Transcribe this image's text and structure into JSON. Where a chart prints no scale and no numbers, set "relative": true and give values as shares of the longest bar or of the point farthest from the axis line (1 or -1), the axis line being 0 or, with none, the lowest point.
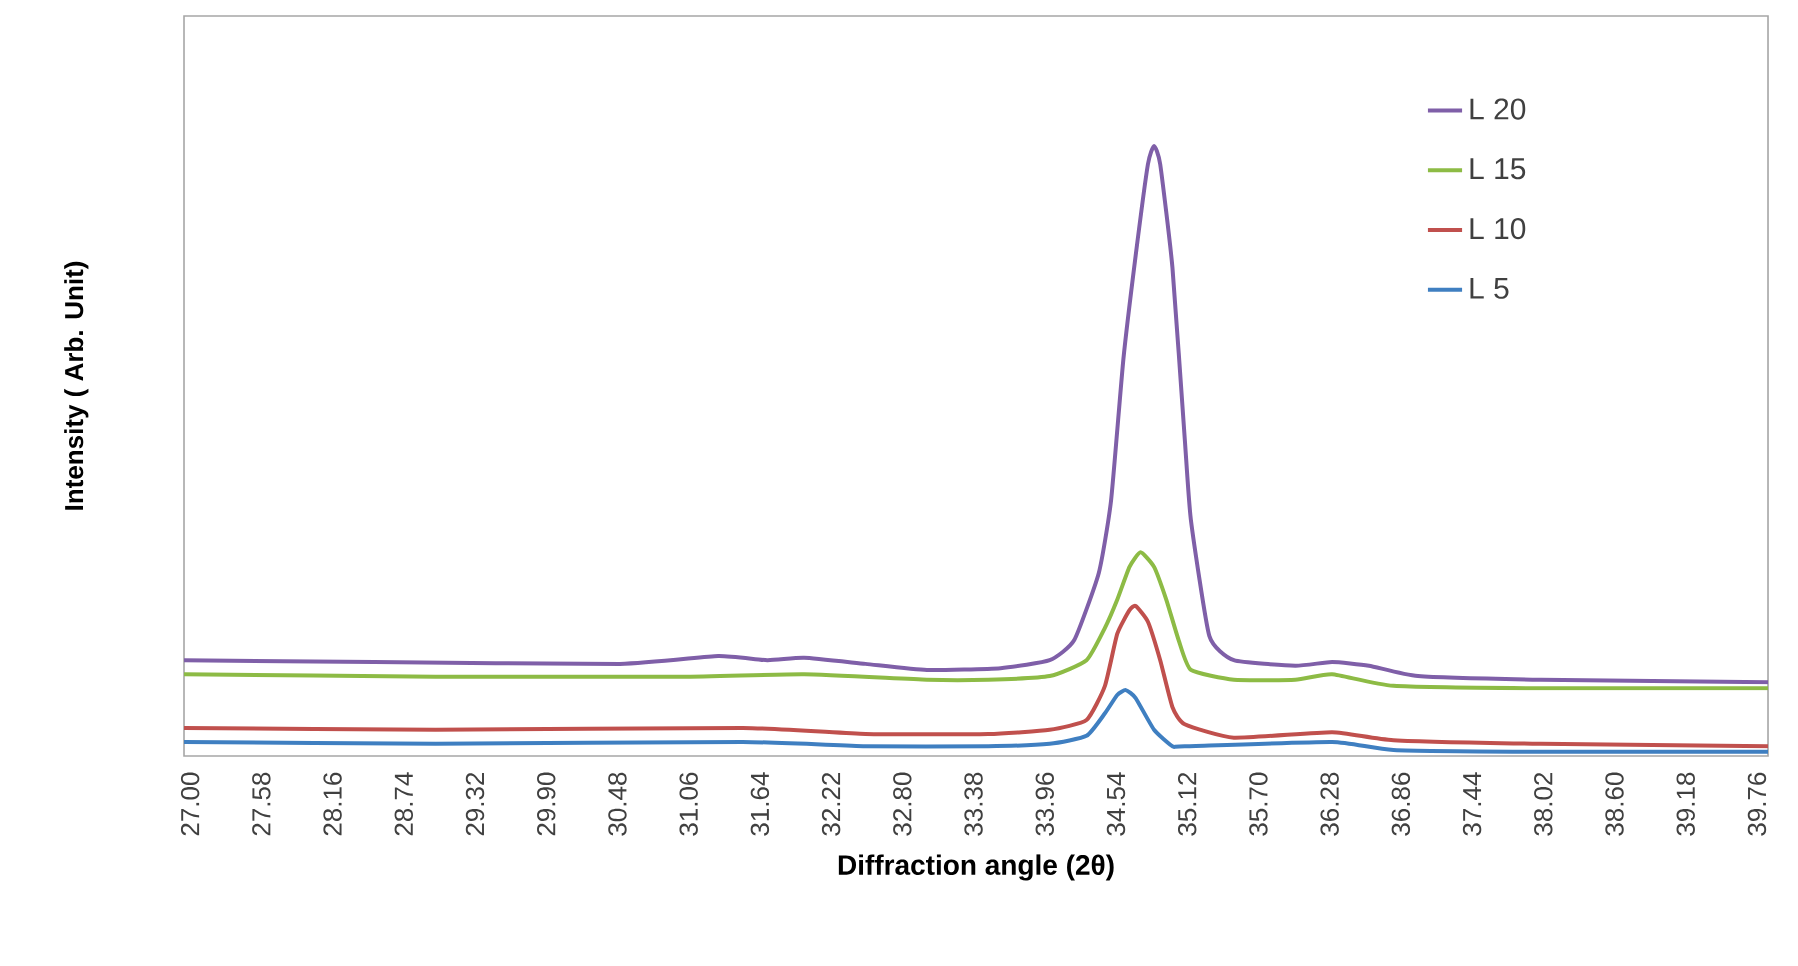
{
  "chart_data": {
    "type": "line",
    "xlabel": "Diffraction angle (2θ)",
    "ylabel": "Intensity ( Arb. Unit)",
    "relative": true,
    "legend": "top right",
    "grid": false,
    "marker": "none",
    "line_style": "solid",
    "xlim": [
      26.95,
      39.85
    ],
    "xticks": [
      {
        "value": 27.0,
        "label": "27.00"
      },
      {
        "value": 27.58,
        "label": "27.58"
      },
      {
        "value": 28.16,
        "label": "28.16"
      },
      {
        "value": 28.74,
        "label": "28.74"
      },
      {
        "value": 29.32,
        "label": "29.32"
      },
      {
        "value": 29.9,
        "label": "29.90"
      },
      {
        "value": 30.48,
        "label": "30.48"
      },
      {
        "value": 31.06,
        "label": "31.06"
      },
      {
        "value": 31.64,
        "label": "31.64"
      },
      {
        "value": 32.22,
        "label": "32.22"
      },
      {
        "value": 32.8,
        "label": "32.80"
      },
      {
        "value": 33.38,
        "label": "33.38"
      },
      {
        "value": 33.96,
        "label": "33.96"
      },
      {
        "value": 34.54,
        "label": "34.54"
      },
      {
        "value": 35.12,
        "label": "35.12"
      },
      {
        "value": 35.7,
        "label": "35.70"
      },
      {
        "value": 36.28,
        "label": "36.28"
      },
      {
        "value": 36.86,
        "label": "36.86"
      },
      {
        "value": 37.44,
        "label": "37.44"
      },
      {
        "value": 38.02,
        "label": "38.02"
      },
      {
        "value": 38.6,
        "label": "38.60"
      },
      {
        "value": 39.18,
        "label": "39.18"
      },
      {
        "value": 39.76,
        "label": "39.76"
      }
    ],
    "series": [
      {
        "name": "L 20",
        "color": "#7f5fa8",
        "x": [
          26.95,
          28.5,
          30.5,
          31.3,
          31.7,
          32.0,
          32.5,
          33.0,
          33.6,
          34.0,
          34.2,
          34.4,
          34.5,
          34.6,
          34.7,
          34.8,
          34.85,
          34.9,
          35.0,
          35.1,
          35.15,
          35.3,
          35.5,
          36.0,
          36.3,
          36.6,
          37.0,
          38.0,
          39.85
        ],
        "values": [
          0.157,
          0.154,
          0.151,
          0.164,
          0.157,
          0.161,
          0.151,
          0.141,
          0.144,
          0.157,
          0.19,
          0.3,
          0.419,
          0.65,
          0.82,
          0.97,
          1.0,
          0.97,
          0.8,
          0.52,
          0.387,
          0.197,
          0.157,
          0.148,
          0.154,
          0.148,
          0.131,
          0.125,
          0.121
        ]
      },
      {
        "name": "L 15",
        "color": "#8dbb45",
        "x": [
          26.95,
          29.0,
          31.0,
          32.0,
          33.0,
          33.5,
          34.0,
          34.3,
          34.45,
          34.55,
          34.65,
          34.74,
          34.85,
          34.95,
          35.05,
          35.15,
          35.5,
          36.0,
          36.3,
          36.8,
          38.0,
          39.85
        ],
        "values": [
          0.134,
          0.13,
          0.13,
          0.134,
          0.125,
          0.125,
          0.131,
          0.157,
          0.21,
          0.256,
          0.31,
          0.334,
          0.31,
          0.256,
          0.19,
          0.141,
          0.125,
          0.125,
          0.134,
          0.115,
          0.111,
          0.111
        ]
      },
      {
        "name": "L 10",
        "color": "#c0504d",
        "x": [
          26.95,
          29.0,
          31.5,
          32.5,
          33.5,
          34.0,
          34.3,
          34.45,
          34.55,
          34.65,
          34.7,
          34.8,
          34.9,
          35.0,
          35.1,
          35.5,
          36.3,
          36.8,
          38.0,
          39.85
        ],
        "values": [
          0.046,
          0.043,
          0.046,
          0.036,
          0.036,
          0.043,
          0.059,
          0.115,
          0.2,
          0.239,
          0.246,
          0.22,
          0.157,
          0.08,
          0.052,
          0.03,
          0.039,
          0.026,
          0.02,
          0.016
        ]
      },
      {
        "name": "L 5",
        "color": "#3f7fc1",
        "x": [
          26.95,
          29.0,
          31.5,
          32.5,
          33.5,
          34.0,
          34.3,
          34.45,
          34.55,
          34.62,
          34.7,
          34.85,
          35.0,
          35.1,
          36.3,
          36.8,
          38.0,
          39.85
        ],
        "values": [
          0.023,
          0.02,
          0.023,
          0.016,
          0.016,
          0.02,
          0.033,
          0.07,
          0.1,
          0.108,
          0.095,
          0.043,
          0.016,
          0.016,
          0.023,
          0.01,
          0.007,
          0.007
        ]
      }
    ]
  }
}
